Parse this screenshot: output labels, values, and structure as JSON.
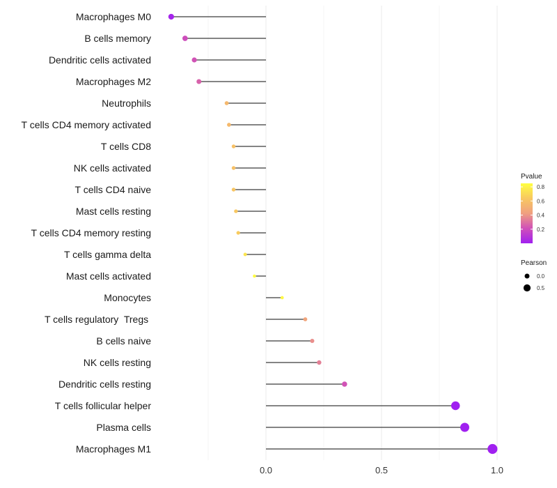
{
  "chart_data": {
    "type": "lollipop",
    "title": "",
    "xlabel": "",
    "ylabel": "",
    "xlim": [
      -0.41,
      1.05
    ],
    "x_ticks": [
      0.0,
      0.5,
      1.0
    ],
    "x_tick_labels": [
      "0.0",
      "0.5",
      "1.0"
    ],
    "grid": true,
    "categories": [
      "Macrophages M0",
      "B cells memory",
      "Dendritic cells activated",
      "Macrophages M2",
      "Neutrophils",
      "T cells CD4 memory activated",
      "T cells CD8",
      "NK cells activated",
      "T cells CD4 naive",
      "Mast cells resting",
      "T cells CD4 memory resting",
      "T cells gamma delta",
      "Mast cells activated",
      "Monocytes",
      "T cells regulatory  Tregs ",
      "B cells naive",
      "NK cells resting",
      "Dendritic cells resting",
      "T cells follicular helper",
      "Plasma cells",
      "Macrophages M1"
    ],
    "pearson": [
      -0.41,
      -0.35,
      -0.31,
      -0.29,
      -0.17,
      -0.16,
      -0.14,
      -0.14,
      -0.14,
      -0.13,
      -0.12,
      -0.09,
      -0.05,
      0.07,
      0.17,
      0.2,
      0.23,
      0.34,
      0.82,
      0.86,
      0.98
    ],
    "pvalue": [
      0.02,
      0.2,
      0.22,
      0.26,
      0.55,
      0.56,
      0.6,
      0.6,
      0.62,
      0.63,
      0.65,
      0.75,
      0.84,
      0.82,
      0.45,
      0.38,
      0.34,
      0.22,
      0.0,
      0.0,
      0.0
    ],
    "color_legend": {
      "title": "Pvalue",
      "range": [
        0.0,
        0.85
      ],
      "ticks": [
        0.2,
        0.4,
        0.6,
        0.8
      ],
      "tick_labels": [
        "0.2",
        "0.4",
        "0.6",
        "0.8"
      ],
      "colors": [
        "#a020f0",
        "#d050b8",
        "#f0a080",
        "#f8c860",
        "#ffff40"
      ]
    },
    "size_legend": {
      "title": "Pearson",
      "values": [
        0.0,
        0.5
      ],
      "labels": [
        "0.0",
        "0.5"
      ]
    },
    "legend_position": "right"
  }
}
